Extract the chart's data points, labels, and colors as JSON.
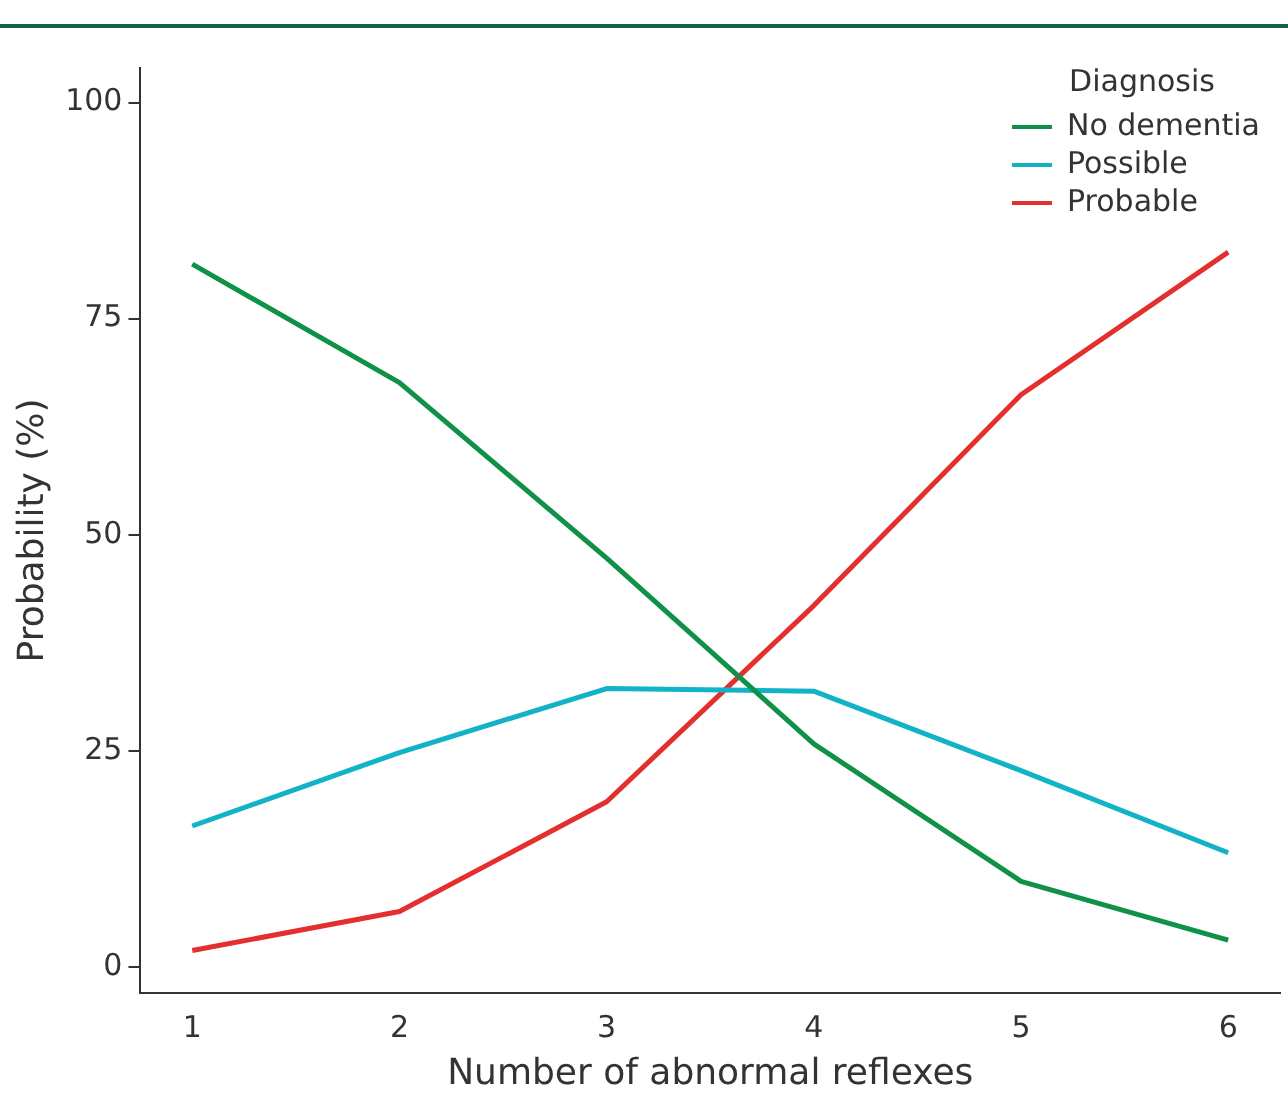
{
  "chart_data": {
    "type": "line",
    "xlabel": "Number of abnormal reflexes",
    "ylabel": "Probability (%)",
    "legend_title": "Diagnosis",
    "legend": "top right",
    "grid": false,
    "marker": "none",
    "line_style": "solid",
    "x": [
      1,
      2,
      3,
      4,
      5,
      6
    ],
    "xlim": [
      0.75,
      6.25
    ],
    "xticks": [
      1,
      2,
      3,
      4,
      5,
      6
    ],
    "ylim": [
      -3,
      104
    ],
    "yticks": [
      0,
      25,
      50,
      75,
      100
    ],
    "series": [
      {
        "name": "No dementia",
        "color": "#0f9148",
        "values": [
          81.3,
          67.6,
          47.3,
          25.8,
          9.9,
          3.1
        ]
      },
      {
        "name": "Possible",
        "color": "#12b2c7",
        "values": [
          16.3,
          24.8,
          32.2,
          31.9,
          22.7,
          13.2
        ]
      },
      {
        "name": "Probable",
        "color": "#e42f2f",
        "values": [
          1.9,
          6.4,
          19.1,
          41.8,
          66.2,
          82.7
        ]
      }
    ]
  }
}
